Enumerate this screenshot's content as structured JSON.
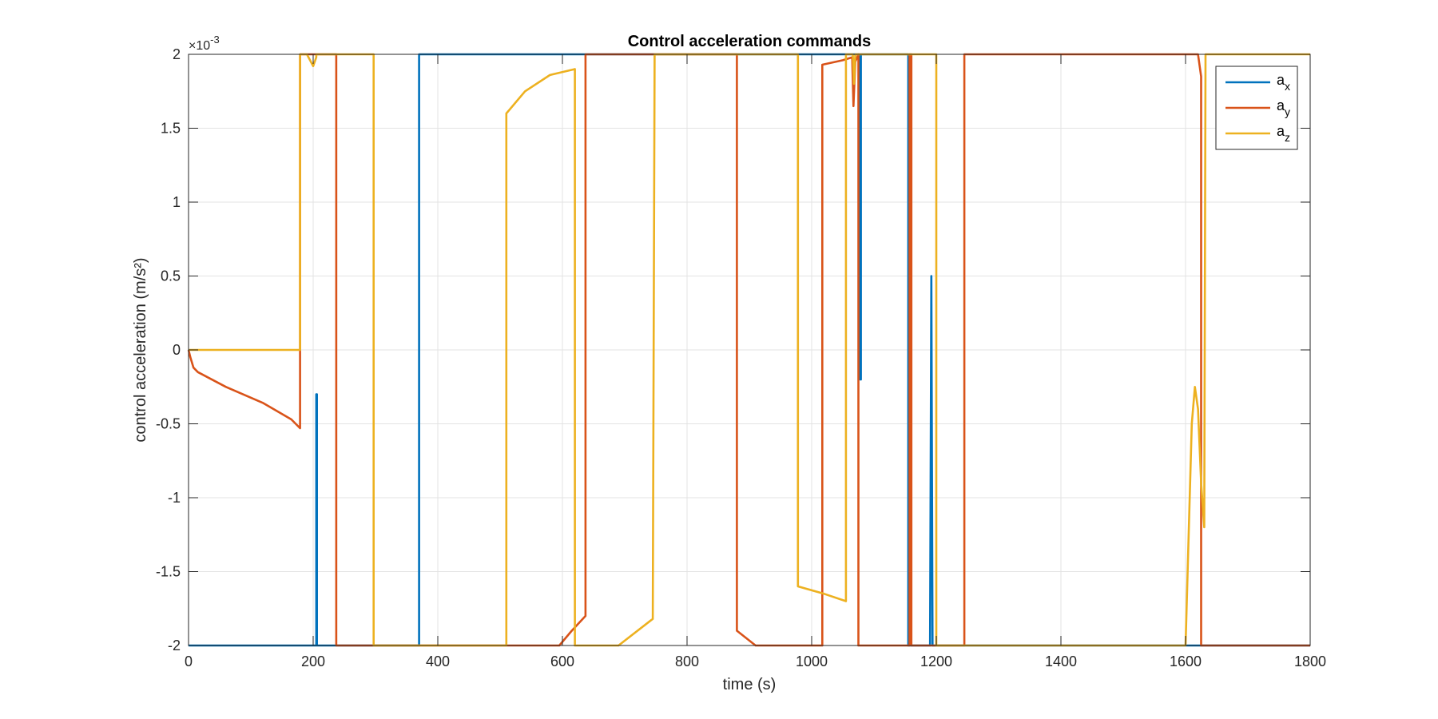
{
  "chart_data": {
    "type": "line",
    "title": "Control acceleration commands",
    "xlabel": "time (s)",
    "ylabel": "control acceleration (m/s²)",
    "y_exponent_label": "×10",
    "y_exponent_power": "-3",
    "xlim": [
      0,
      1800
    ],
    "ylim": [
      -2,
      2
    ],
    "grid": true,
    "legend_position": "top-right",
    "x_ticks": [
      0,
      200,
      400,
      600,
      800,
      1000,
      1200,
      1400,
      1600,
      1800
    ],
    "x_tick_labels": [
      "0",
      "200",
      "400",
      "600",
      "800",
      "1000",
      "1200",
      "1400",
      "1600",
      "1800"
    ],
    "y_ticks": [
      -2,
      -1.5,
      -1,
      -0.5,
      0,
      0.5,
      1,
      1.5,
      2
    ],
    "y_tick_labels": [
      "-2",
      "-1.5",
      "-1",
      "-0.5",
      "0",
      "0.5",
      "1",
      "1.5",
      "2"
    ],
    "series": [
      {
        "name": "a",
        "subscript": "x",
        "color": "#0072BD",
        "points": [
          [
            0,
            -2
          ],
          [
            205,
            -2
          ],
          [
            205,
            -0.3
          ],
          [
            206,
            -0.3
          ],
          [
            206,
            -2
          ],
          [
            370,
            -2
          ],
          [
            370,
            2
          ],
          [
            1078,
            2
          ],
          [
            1078,
            -0.2
          ],
          [
            1079,
            -0.2
          ],
          [
            1079,
            2
          ],
          [
            1155,
            2
          ],
          [
            1155,
            -2
          ],
          [
            1190,
            -2
          ],
          [
            1192,
            0.5
          ],
          [
            1194,
            -2
          ],
          [
            1590,
            -2
          ],
          [
            1592,
            -2
          ],
          [
            1800,
            -2
          ]
        ]
      },
      {
        "name": "a",
        "subscript": "y",
        "color": "#D95319",
        "points": [
          [
            0,
            0
          ],
          [
            3,
            -0.05
          ],
          [
            8,
            -0.12
          ],
          [
            15,
            -0.15
          ],
          [
            60,
            -0.25
          ],
          [
            120,
            -0.36
          ],
          [
            165,
            -0.47
          ],
          [
            179,
            -0.53
          ],
          [
            179,
            2
          ],
          [
            237,
            2
          ],
          [
            237,
            -2
          ],
          [
            595,
            -2
          ],
          [
            615,
            -1.9
          ],
          [
            637,
            -1.8
          ],
          [
            637,
            2
          ],
          [
            880,
            2
          ],
          [
            880,
            -1.9
          ],
          [
            910,
            -2
          ],
          [
            1017,
            -2
          ],
          [
            1017,
            1.93
          ],
          [
            1050,
            1.96
          ],
          [
            1065,
            1.98
          ],
          [
            1067,
            1.65
          ],
          [
            1070,
            1.95
          ],
          [
            1075,
            2
          ],
          [
            1075,
            -2
          ],
          [
            1157,
            -2
          ],
          [
            1157,
            2
          ],
          [
            1160,
            2
          ],
          [
            1160,
            -2
          ],
          [
            1245,
            -2
          ],
          [
            1245,
            2
          ],
          [
            1620,
            2
          ],
          [
            1625,
            1.85
          ],
          [
            1625,
            -2
          ],
          [
            1800,
            -2
          ]
        ]
      },
      {
        "name": "a",
        "subscript": "z",
        "color": "#EDB120",
        "points": [
          [
            0,
            0
          ],
          [
            179,
            0
          ],
          [
            179,
            2
          ],
          [
            190,
            2
          ],
          [
            195,
            1.96
          ],
          [
            200,
            1.92
          ],
          [
            205,
            1.98
          ],
          [
            205,
            2
          ],
          [
            297,
            2
          ],
          [
            297,
            -2
          ],
          [
            510,
            -2
          ],
          [
            510,
            1.6
          ],
          [
            540,
            1.75
          ],
          [
            580,
            1.86
          ],
          [
            620,
            1.9
          ],
          [
            620,
            -2
          ],
          [
            690,
            -2
          ],
          [
            745,
            -1.82
          ],
          [
            748,
            2
          ],
          [
            978,
            2
          ],
          [
            978,
            -1.6
          ],
          [
            1020,
            -1.65
          ],
          [
            1055,
            -1.7
          ],
          [
            1055,
            2
          ],
          [
            1066,
            2
          ],
          [
            1068,
            1.8
          ],
          [
            1070,
            2
          ],
          [
            1200,
            2
          ],
          [
            1200,
            -2
          ],
          [
            1600,
            -2
          ],
          [
            1610,
            -0.5
          ],
          [
            1615,
            -0.25
          ],
          [
            1620,
            -0.4
          ],
          [
            1625,
            -0.9
          ],
          [
            1630,
            -1.2
          ],
          [
            1632,
            2
          ],
          [
            1800,
            2
          ]
        ]
      }
    ]
  }
}
